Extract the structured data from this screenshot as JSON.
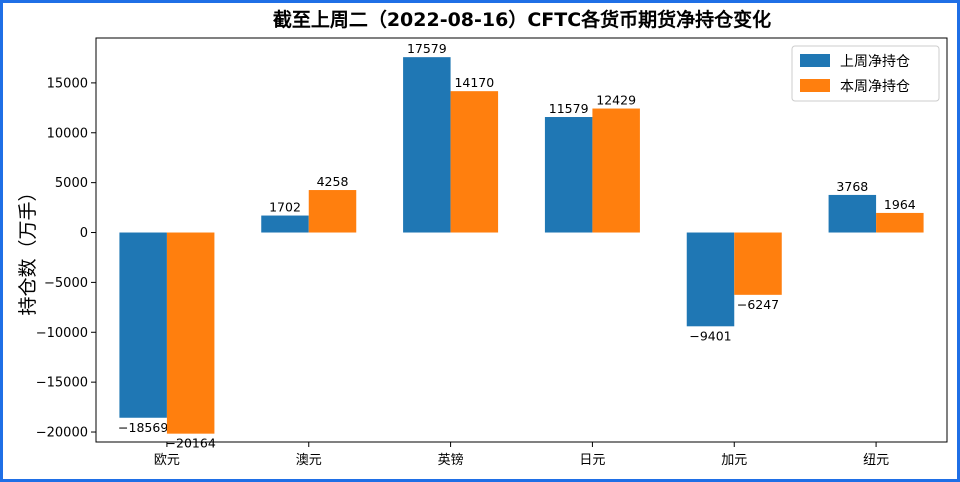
{
  "chart_data": {
    "type": "bar",
    "title": "截至上周二（2022-08-16）CFTC各货币期货净持仓变化",
    "xlabel": "",
    "ylabel": "持仓数（万手）",
    "categories": [
      "欧元",
      "澳元",
      "英镑",
      "日元",
      "加元",
      "纽元"
    ],
    "series": [
      {
        "name": "上周净持仓",
        "values": [
          -18569,
          1702,
          17579,
          11579,
          -9401,
          3768
        ],
        "color": "#1f77b4"
      },
      {
        "name": "本周净持仓",
        "values": [
          -20164,
          4258,
          14170,
          12429,
          -6247,
          1964
        ],
        "color": "#ff7f0e"
      }
    ],
    "ylim": [
      -21000,
      19500
    ],
    "yticks": [
      -20000,
      -15000,
      -10000,
      -5000,
      0,
      5000,
      10000,
      15000
    ],
    "ytick_labels": [
      "−20000",
      "−15000",
      "−10000",
      "−5000",
      "0",
      "5000",
      "10000",
      "15000"
    ],
    "data_labels": [
      [
        "−18569",
        "1702",
        "17579",
        "11579",
        "−9401",
        "3768"
      ],
      [
        "−20164",
        "4258",
        "14170",
        "12429",
        "−6247",
        "1964"
      ]
    ],
    "grid": false,
    "legend_position": "top-right"
  }
}
